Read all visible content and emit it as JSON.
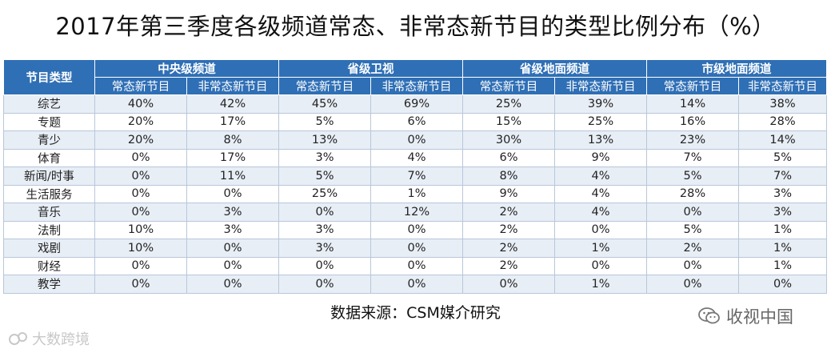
{
  "chart_data": {
    "type": "table",
    "title": "2017年第三季度各级频道常态、非常态新节目的类型比例分布（%）",
    "row_header": "节目类型",
    "groups": [
      "中央级频道",
      "省级卫视",
      "省级地面频道",
      "市级地面频道"
    ],
    "subcolumns": [
      "常态新节目",
      "非常态新节目"
    ],
    "rows": [
      {
        "label": "综艺",
        "values": [
          "40%",
          "42%",
          "45%",
          "69%",
          "25%",
          "39%",
          "14%",
          "38%"
        ]
      },
      {
        "label": "专题",
        "values": [
          "20%",
          "17%",
          "5%",
          "6%",
          "15%",
          "25%",
          "16%",
          "28%"
        ]
      },
      {
        "label": "青少",
        "values": [
          "20%",
          "8%",
          "13%",
          "0%",
          "30%",
          "13%",
          "23%",
          "14%"
        ]
      },
      {
        "label": "体育",
        "values": [
          "0%",
          "17%",
          "3%",
          "4%",
          "6%",
          "9%",
          "7%",
          "5%"
        ]
      },
      {
        "label": "新闻/时事",
        "values": [
          "0%",
          "11%",
          "5%",
          "7%",
          "8%",
          "4%",
          "5%",
          "7%"
        ]
      },
      {
        "label": "生活服务",
        "values": [
          "0%",
          "0%",
          "25%",
          "1%",
          "9%",
          "4%",
          "28%",
          "3%"
        ]
      },
      {
        "label": "音乐",
        "values": [
          "0%",
          "3%",
          "0%",
          "12%",
          "2%",
          "4%",
          "0%",
          "3%"
        ]
      },
      {
        "label": "法制",
        "values": [
          "10%",
          "3%",
          "3%",
          "0%",
          "2%",
          "0%",
          "5%",
          "1%"
        ]
      },
      {
        "label": "戏剧",
        "values": [
          "10%",
          "0%",
          "3%",
          "0%",
          "2%",
          "1%",
          "2%",
          "1%"
        ]
      },
      {
        "label": "财经",
        "values": [
          "0%",
          "0%",
          "0%",
          "0%",
          "2%",
          "0%",
          "0%",
          "1%"
        ]
      },
      {
        "label": "教学",
        "values": [
          "0%",
          "0%",
          "0%",
          "0%",
          "0%",
          "1%",
          "0%",
          "0%"
        ]
      }
    ],
    "source": "数据来源：CSM媒介研究"
  },
  "watermarks": {
    "left": "大数跨境",
    "right": "收视中国"
  },
  "colors": {
    "header_bg": "#2f6fb5",
    "row_stripe": "#e8eef6"
  }
}
